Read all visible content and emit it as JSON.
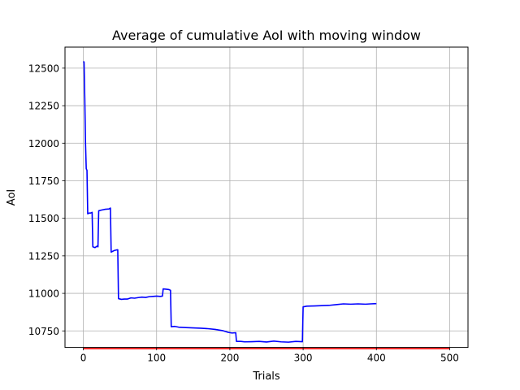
{
  "chart_data": {
    "type": "line",
    "title": "Average of cumulative AoI with moving window",
    "xlabel": "Trials",
    "ylabel": "AoI",
    "xlim": [
      -25,
      525
    ],
    "ylim": [
      10640,
      12640
    ],
    "xticks": [
      0,
      100,
      200,
      300,
      400,
      500
    ],
    "yticks": [
      10750,
      11000,
      11250,
      11500,
      11750,
      12000,
      12250,
      12500
    ],
    "grid": true,
    "series": [
      {
        "color": "#0000ff",
        "points": [
          [
            0,
            12545
          ],
          [
            1,
            12540
          ],
          [
            2,
            12300
          ],
          [
            3,
            12000
          ],
          [
            4,
            11830
          ],
          [
            5,
            11820
          ],
          [
            6,
            11530
          ],
          [
            8,
            11535
          ],
          [
            10,
            11535
          ],
          [
            12,
            11540
          ],
          [
            13,
            11310
          ],
          [
            16,
            11305
          ],
          [
            19,
            11315
          ],
          [
            20,
            11310
          ],
          [
            21,
            11550
          ],
          [
            25,
            11555
          ],
          [
            30,
            11560
          ],
          [
            35,
            11562
          ],
          [
            37,
            11568
          ],
          [
            38,
            11275
          ],
          [
            42,
            11285
          ],
          [
            46,
            11290
          ],
          [
            47,
            11290
          ],
          [
            48,
            10965
          ],
          [
            52,
            10960
          ],
          [
            56,
            10962
          ],
          [
            60,
            10962
          ],
          [
            65,
            10970
          ],
          [
            70,
            10968
          ],
          [
            75,
            10972
          ],
          [
            80,
            10975
          ],
          [
            85,
            10973
          ],
          [
            90,
            10978
          ],
          [
            95,
            10980
          ],
          [
            100,
            10982
          ],
          [
            105,
            10980
          ],
          [
            108,
            10982
          ],
          [
            109,
            11030
          ],
          [
            113,
            11028
          ],
          [
            117,
            11025
          ],
          [
            119,
            11020
          ],
          [
            120,
            10778
          ],
          [
            125,
            10780
          ],
          [
            130,
            10775
          ],
          [
            140,
            10772
          ],
          [
            150,
            10770
          ],
          [
            160,
            10768
          ],
          [
            170,
            10765
          ],
          [
            180,
            10760
          ],
          [
            190,
            10752
          ],
          [
            198,
            10740
          ],
          [
            203,
            10736
          ],
          [
            208,
            10738
          ],
          [
            209,
            10680
          ],
          [
            215,
            10680
          ],
          [
            220,
            10677
          ],
          [
            230,
            10678
          ],
          [
            240,
            10680
          ],
          [
            250,
            10676
          ],
          [
            260,
            10682
          ],
          [
            270,
            10677
          ],
          [
            280,
            10675
          ],
          [
            290,
            10680
          ],
          [
            299,
            10678
          ],
          [
            300,
            10910
          ],
          [
            305,
            10915
          ],
          [
            315,
            10916
          ],
          [
            325,
            10918
          ],
          [
            335,
            10920
          ],
          [
            345,
            10925
          ],
          [
            355,
            10930
          ],
          [
            365,
            10928
          ],
          [
            375,
            10930
          ],
          [
            385,
            10928
          ],
          [
            392,
            10930
          ],
          [
            400,
            10932
          ]
        ]
      },
      {
        "color": "#ff0000",
        "points": [
          [
            0,
            10632
          ],
          [
            500,
            10632
          ]
        ]
      }
    ]
  }
}
